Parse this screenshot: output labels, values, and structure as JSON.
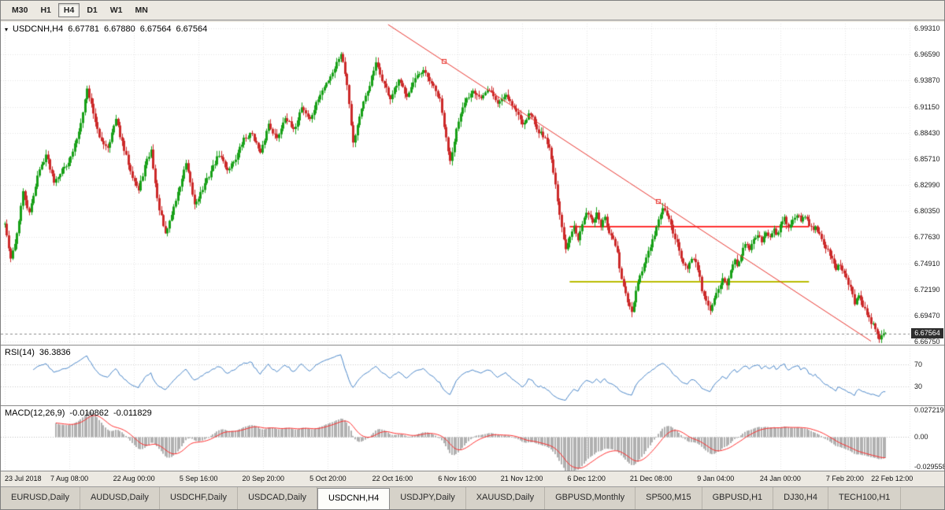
{
  "toolbar": {
    "timeframes": [
      {
        "label": "M30",
        "active": false
      },
      {
        "label": "H1",
        "active": false
      },
      {
        "label": "H4",
        "active": true
      },
      {
        "label": "D1",
        "active": false
      },
      {
        "label": "W1",
        "active": false
      },
      {
        "label": "MN",
        "active": false
      }
    ]
  },
  "chart": {
    "title": {
      "symbol_tf": "USDCNH,H4",
      "open": "6.67781",
      "high": "6.67880",
      "low": "6.67564",
      "close": "6.67564"
    }
  },
  "price_scale": {
    "labels": [
      "6.99310",
      "6.96590",
      "6.93870",
      "6.91150",
      "6.88430",
      "6.85710",
      "6.82990",
      "6.80350",
      "6.77630",
      "6.74910",
      "6.72190",
      "6.69470",
      "6.66750"
    ],
    "current": "6.67564"
  },
  "rsi": {
    "label": "RSI(14)",
    "value": "36.3836",
    "levels": [
      "70",
      "30"
    ]
  },
  "macd": {
    "label": "MACD(12,26,9)",
    "value_macd": "-0.010862",
    "value_signal": "-0.011829",
    "scale": [
      "0.0272190",
      "0.00",
      "-0.0295580"
    ]
  },
  "time_axis": {
    "labels": [
      "23 Jul 2018",
      "7 Aug 08:00",
      "22 Aug 00:00",
      "5 Sep 16:00",
      "20 Sep 20:00",
      "5 Oct 20:00",
      "22 Oct 16:00",
      "6 Nov 16:00",
      "21 Nov 12:00",
      "6 Dec 12:00",
      "21 Dec 08:00",
      "9 Jan 04:00",
      "24 Jan 00:00",
      "7 Feb 20:00",
      "22 Feb 12:00"
    ]
  },
  "tabs": [
    {
      "label": "EURUSD,Daily",
      "active": false
    },
    {
      "label": "AUDUSD,Daily",
      "active": false
    },
    {
      "label": "USDCHF,Daily",
      "active": false
    },
    {
      "label": "USDCAD,Daily",
      "active": false
    },
    {
      "label": "USDCNH,H4",
      "active": true
    },
    {
      "label": "USDJPY,Daily",
      "active": false
    },
    {
      "label": "XAUUSD,Daily",
      "active": false
    },
    {
      "label": "GBPUSD,Monthly",
      "active": false
    },
    {
      "label": "SP500,M15",
      "active": false
    },
    {
      "label": "GBPUSD,H1",
      "active": false
    },
    {
      "label": "DJ30,H4",
      "active": false
    },
    {
      "label": "TECH100,H1",
      "active": false
    }
  ],
  "chart_data": {
    "type": "candlestick",
    "symbol": "USDCNH",
    "timeframe": "H4",
    "title": "USDCNH,H4",
    "ohlc_display": {
      "open": 6.67781,
      "high": 6.6788,
      "low": 6.67564,
      "close": 6.67564
    },
    "price_axis": {
      "min": 6.6675,
      "max": 6.9931,
      "grid_step": 0.0272
    },
    "time_ticks": [
      "23 Jul 2018",
      "7 Aug 08:00",
      "22 Aug 00:00",
      "5 Sep 16:00",
      "20 Sep 20:00",
      "5 Oct 20:00",
      "22 Oct 16:00",
      "6 Nov 16:00",
      "21 Nov 12:00",
      "6 Dec 12:00",
      "21 Dec 08:00",
      "9 Jan 04:00",
      "24 Jan 00:00",
      "7 Feb 20:00",
      "22 Feb 12:00"
    ],
    "candle_count": 428,
    "close_anchors": [
      [
        0,
        6.79
      ],
      [
        3,
        6.752
      ],
      [
        6,
        6.78
      ],
      [
        9,
        6.822
      ],
      [
        12,
        6.8
      ],
      [
        16,
        6.84
      ],
      [
        20,
        6.862
      ],
      [
        24,
        6.835
      ],
      [
        28,
        6.846
      ],
      [
        32,
        6.858
      ],
      [
        36,
        6.886
      ],
      [
        40,
        6.93
      ],
      [
        43,
        6.906
      ],
      [
        46,
        6.878
      ],
      [
        50,
        6.87
      ],
      [
        54,
        6.898
      ],
      [
        58,
        6.866
      ],
      [
        62,
        6.84
      ],
      [
        65,
        6.824
      ],
      [
        68,
        6.85
      ],
      [
        71,
        6.866
      ],
      [
        74,
        6.815
      ],
      [
        78,
        6.778
      ],
      [
        81,
        6.8
      ],
      [
        84,
        6.822
      ],
      [
        88,
        6.852
      ],
      [
        92,
        6.81
      ],
      [
        96,
        6.826
      ],
      [
        100,
        6.845
      ],
      [
        104,
        6.862
      ],
      [
        108,
        6.846
      ],
      [
        112,
        6.858
      ],
      [
        116,
        6.878
      ],
      [
        120,
        6.884
      ],
      [
        124,
        6.862
      ],
      [
        128,
        6.894
      ],
      [
        132,
        6.878
      ],
      [
        136,
        6.902
      ],
      [
        140,
        6.886
      ],
      [
        144,
        6.912
      ],
      [
        148,
        6.898
      ],
      [
        152,
        6.92
      ],
      [
        156,
        6.936
      ],
      [
        160,
        6.952
      ],
      [
        163,
        6.968
      ],
      [
        166,
        6.936
      ],
      [
        169,
        6.874
      ],
      [
        172,
        6.902
      ],
      [
        176,
        6.928
      ],
      [
        180,
        6.956
      ],
      [
        183,
        6.94
      ],
      [
        187,
        6.92
      ],
      [
        191,
        6.938
      ],
      [
        195,
        6.924
      ],
      [
        199,
        6.94
      ],
      [
        203,
        6.948
      ],
      [
        207,
        6.936
      ],
      [
        211,
        6.918
      ],
      [
        214,
        6.878
      ],
      [
        216,
        6.856
      ],
      [
        219,
        6.888
      ],
      [
        223,
        6.916
      ],
      [
        227,
        6.93
      ],
      [
        231,
        6.92
      ],
      [
        235,
        6.93
      ],
      [
        239,
        6.915
      ],
      [
        243,
        6.925
      ],
      [
        247,
        6.91
      ],
      [
        251,
        6.895
      ],
      [
        255,
        6.905
      ],
      [
        258,
        6.888
      ],
      [
        262,
        6.88
      ],
      [
        264,
        6.868
      ],
      [
        266,
        6.845
      ],
      [
        268,
        6.812
      ],
      [
        270,
        6.785
      ],
      [
        272,
        6.762
      ],
      [
        274,
        6.778
      ],
      [
        276,
        6.79
      ],
      [
        278,
        6.774
      ],
      [
        281,
        6.796
      ],
      [
        283,
        6.802
      ],
      [
        285,
        6.792
      ],
      [
        287,
        6.8
      ],
      [
        289,
        6.788
      ],
      [
        291,
        6.795
      ],
      [
        293,
        6.78
      ],
      [
        295,
        6.772
      ],
      [
        297,
        6.76
      ],
      [
        298,
        6.742
      ],
      [
        300,
        6.725
      ],
      [
        302,
        6.708
      ],
      [
        304,
        6.698
      ],
      [
        306,
        6.718
      ],
      [
        308,
        6.735
      ],
      [
        310,
        6.748
      ],
      [
        312,
        6.76
      ],
      [
        314,
        6.772
      ],
      [
        316,
        6.785
      ],
      [
        317,
        6.795
      ],
      [
        319,
        6.806
      ],
      [
        321,
        6.798
      ],
      [
        323,
        6.788
      ],
      [
        325,
        6.775
      ],
      [
        327,
        6.762
      ],
      [
        329,
        6.748
      ],
      [
        331,
        6.742
      ],
      [
        333,
        6.755
      ],
      [
        335,
        6.748
      ],
      [
        337,
        6.735
      ],
      [
        338,
        6.722
      ],
      [
        340,
        6.708
      ],
      [
        342,
        6.7
      ],
      [
        344,
        6.712
      ],
      [
        346,
        6.722
      ],
      [
        348,
        6.735
      ],
      [
        350,
        6.728
      ],
      [
        352,
        6.74
      ],
      [
        354,
        6.752
      ],
      [
        355,
        6.748
      ],
      [
        357,
        6.758
      ],
      [
        359,
        6.77
      ],
      [
        361,
        6.762
      ],
      [
        363,
        6.772
      ],
      [
        365,
        6.78
      ],
      [
        367,
        6.772
      ],
      [
        369,
        6.782
      ],
      [
        371,
        6.775
      ],
      [
        373,
        6.785
      ],
      [
        374,
        6.778
      ],
      [
        376,
        6.788
      ],
      [
        378,
        6.795
      ],
      [
        380,
        6.788
      ],
      [
        382,
        6.795
      ],
      [
        384,
        6.8
      ],
      [
        386,
        6.792
      ],
      [
        388,
        6.798
      ],
      [
        390,
        6.79
      ],
      [
        392,
        6.782
      ],
      [
        393,
        6.788
      ],
      [
        395,
        6.778
      ],
      [
        397,
        6.77
      ],
      [
        399,
        6.762
      ],
      [
        401,
        6.752
      ],
      [
        403,
        6.742
      ],
      [
        405,
        6.748
      ],
      [
        407,
        6.738
      ],
      [
        409,
        6.728
      ],
      [
        411,
        6.718
      ],
      [
        412,
        6.708
      ],
      [
        414,
        6.715
      ],
      [
        416,
        6.705
      ],
      [
        418,
        6.695
      ],
      [
        420,
        6.688
      ],
      [
        422,
        6.68
      ],
      [
        424,
        6.672
      ],
      [
        426,
        6.676
      ]
    ],
    "overlays": {
      "trendline": {
        "color": "#e8342e",
        "points": [
          [
            186,
            6.997
          ],
          [
            420,
            6.668
          ]
        ],
        "markers": [
          [
            213,
            6.959
          ],
          [
            317,
            6.813
          ]
        ]
      },
      "hline_red": {
        "color": "#ff2f2f",
        "price": 6.787,
        "from": 274,
        "to": 390
      },
      "hline_yellow": {
        "color": "#b9bc00",
        "price": 6.7297,
        "from": 274,
        "to": 390
      },
      "current_price": 6.67564
    },
    "indicators": {
      "rsi": {
        "period": 14,
        "current": 36.3836,
        "levels": [
          70,
          30
        ],
        "color": "#4a86c8"
      },
      "macd": {
        "fast": 12,
        "slow": 26,
        "signal": 9,
        "current_macd": -0.010862,
        "current_signal": -0.011829,
        "scale_max": 0.027219,
        "scale_min": -0.029558,
        "histogram_color": "#b0b0b0",
        "signal_color": "#ff2f2f"
      }
    },
    "candle_colors": {
      "up": "#18a018",
      "down": "#cc2a2a"
    },
    "grid": {
      "color": "#e4e4e4",
      "style": "dotted"
    }
  }
}
